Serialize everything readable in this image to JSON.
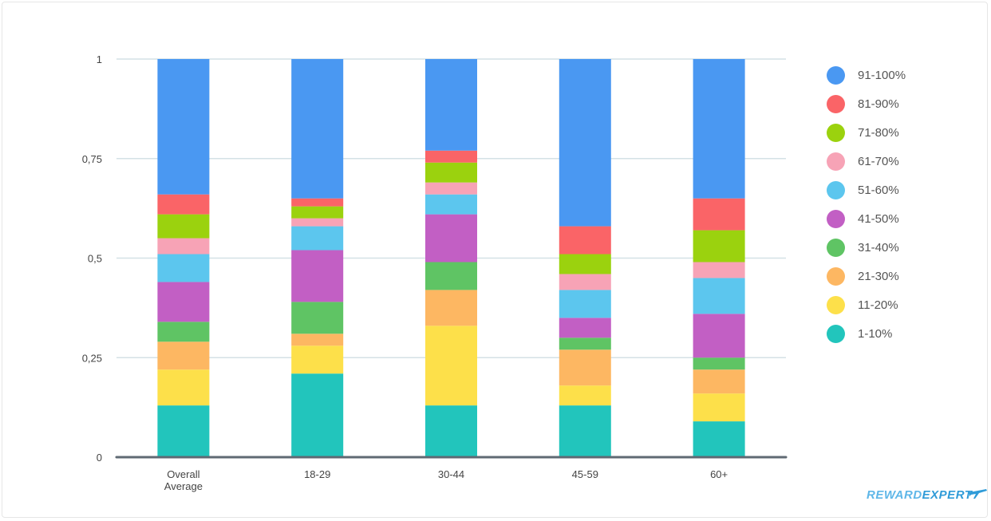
{
  "chart_data": {
    "type": "bar",
    "stacked": true,
    "categories": [
      "Overall Average",
      "18-29",
      "30-44",
      "45-59",
      "60+"
    ],
    "category_lines": [
      [
        "Overall",
        "Average"
      ],
      [
        "18-29"
      ],
      [
        "30-44"
      ],
      [
        "45-59"
      ],
      [
        "60+"
      ]
    ],
    "ylim": [
      0,
      1
    ],
    "yticks": [
      0,
      0.25,
      0.5,
      0.75,
      1
    ],
    "ytick_labels": [
      "0",
      "0,25",
      "0,5",
      "0,75",
      "1"
    ],
    "grid": true,
    "legend_position": "right",
    "series": [
      {
        "name": "1-10%",
        "color": "#22c5bc",
        "values": [
          0.13,
          0.21,
          0.13,
          0.13,
          0.09
        ]
      },
      {
        "name": "11-20%",
        "color": "#fde04a",
        "values": [
          0.09,
          0.07,
          0.2,
          0.05,
          0.07
        ]
      },
      {
        "name": "21-30%",
        "color": "#fdb762",
        "values": [
          0.07,
          0.03,
          0.09,
          0.09,
          0.06
        ]
      },
      {
        "name": "31-40%",
        "color": "#5fc464",
        "values": [
          0.05,
          0.08,
          0.07,
          0.03,
          0.03
        ]
      },
      {
        "name": "41-50%",
        "color": "#c25fc4",
        "values": [
          0.1,
          0.13,
          0.12,
          0.05,
          0.11
        ]
      },
      {
        "name": "51-60%",
        "color": "#5cc6ee",
        "values": [
          0.07,
          0.06,
          0.05,
          0.07,
          0.09
        ]
      },
      {
        "name": "61-70%",
        "color": "#f7a3b6",
        "values": [
          0.04,
          0.02,
          0.03,
          0.04,
          0.04
        ]
      },
      {
        "name": "71-80%",
        "color": "#9bd20e",
        "values": [
          0.06,
          0.03,
          0.05,
          0.05,
          0.08
        ]
      },
      {
        "name": "81-90%",
        "color": "#fa6467",
        "values": [
          0.05,
          0.02,
          0.03,
          0.07,
          0.08
        ]
      },
      {
        "name": "91-100%",
        "color": "#4a98f2",
        "values": [
          0.34,
          0.35,
          0.23,
          0.42,
          0.35
        ]
      }
    ],
    "legend_order": [
      "91-100%",
      "81-90%",
      "71-80%",
      "61-70%",
      "51-60%",
      "41-50%",
      "31-40%",
      "21-30%",
      "11-20%",
      "1-10%"
    ]
  },
  "logo": {
    "part1": "REWARD",
    "part2": "EXPERT"
  }
}
